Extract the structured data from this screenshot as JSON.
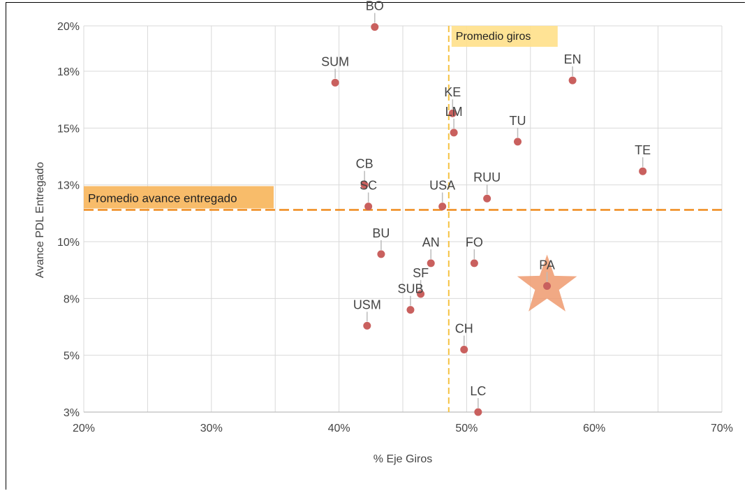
{
  "chart_data": {
    "type": "scatter",
    "title": "",
    "xlabel": "% Eje Giros",
    "ylabel": "Avance PDL Entregado",
    "xlim": [
      20,
      70
    ],
    "ylim": [
      3,
      20
    ],
    "x_ticks": [
      20,
      25,
      30,
      35,
      40,
      45,
      50,
      55,
      60,
      65,
      70
    ],
    "y_ticks": [
      3,
      5.5,
      8,
      10.5,
      13,
      15.5,
      18,
      20
    ],
    "x_tick_labels": [
      "20%",
      "",
      "30%",
      "",
      "40%",
      "",
      "50%",
      "",
      "60%",
      "",
      "70%"
    ],
    "y_tick_labels": [
      "3%",
      "5%",
      "8%",
      "10%",
      "13%",
      "15%",
      "18%",
      "20%"
    ],
    "grid": true,
    "point_color": "#c9605e",
    "points": [
      {
        "label": "BO",
        "x": 42.8,
        "y": 19.95
      },
      {
        "label": "SUM",
        "x": 39.7,
        "y": 17.5
      },
      {
        "label": "EN",
        "x": 58.3,
        "y": 17.6
      },
      {
        "label": "KE",
        "x": 48.9,
        "y": 16.15
      },
      {
        "label": "LM",
        "x": 49.0,
        "y": 15.3
      },
      {
        "label": "TU",
        "x": 54.0,
        "y": 14.9
      },
      {
        "label": "TE",
        "x": 63.8,
        "y": 13.6
      },
      {
        "label": "CB",
        "x": 42.0,
        "y": 13.0
      },
      {
        "label": "SC",
        "x": 42.3,
        "y": 12.05
      },
      {
        "label": "USA",
        "x": 48.1,
        "y": 12.05
      },
      {
        "label": "RUU",
        "x": 51.6,
        "y": 12.4
      },
      {
        "label": "BU",
        "x": 43.3,
        "y": 9.95
      },
      {
        "label": "AN",
        "x": 47.2,
        "y": 9.55
      },
      {
        "label": "FO",
        "x": 50.6,
        "y": 9.55
      },
      {
        "label": "PA",
        "x": 56.3,
        "y": 8.55,
        "highlight": true
      },
      {
        "label": "SF",
        "x": 46.4,
        "y": 8.2
      },
      {
        "label": "SUB",
        "x": 45.6,
        "y": 7.5
      },
      {
        "label": "USM",
        "x": 42.2,
        "y": 6.8
      },
      {
        "label": "CH",
        "x": 49.8,
        "y": 5.75
      },
      {
        "label": "LC",
        "x": 50.9,
        "y": 3.0
      }
    ],
    "reference_lines": [
      {
        "axis": "x",
        "value": 48.6,
        "label": "Promedio giros",
        "color": "#f5c242"
      },
      {
        "axis": "y",
        "value": 11.9,
        "label": "Promedio avance entregado",
        "color": "#ef8a1b"
      }
    ],
    "highlight_color": "#ef9a6e"
  }
}
